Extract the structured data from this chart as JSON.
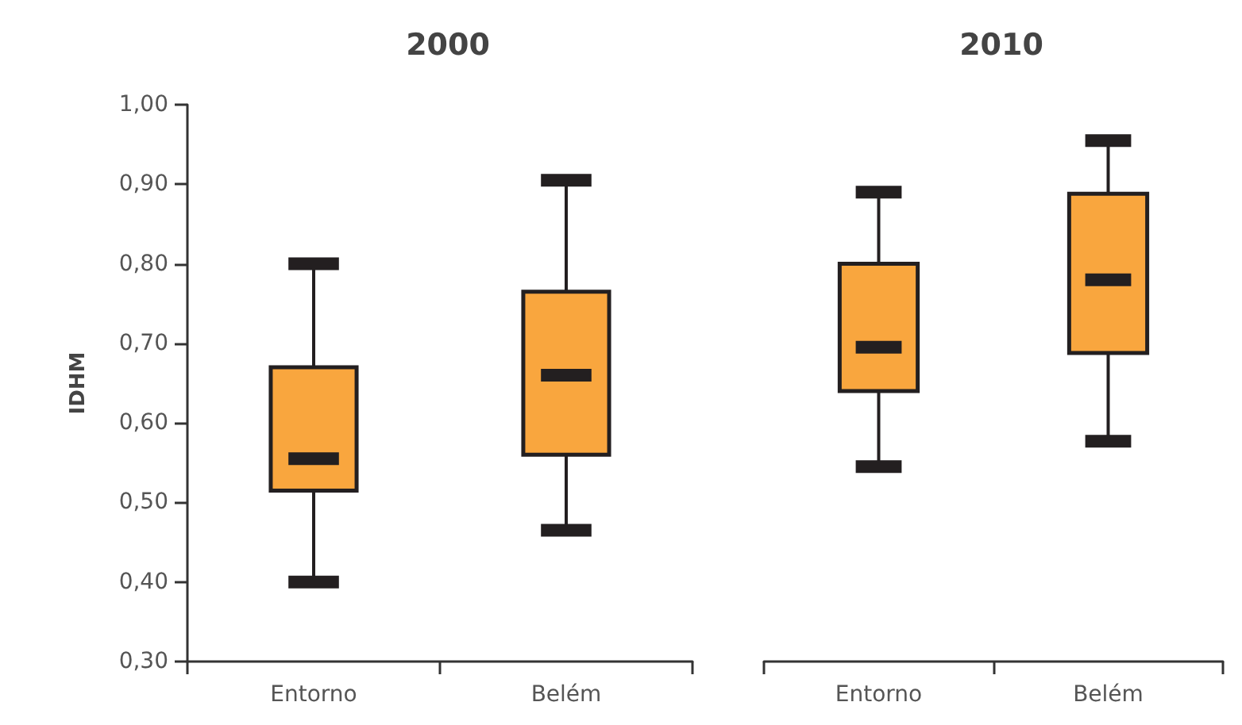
{
  "chart_data": [
    {
      "type": "box",
      "title": "2000",
      "ylabel": "IDHM",
      "categories": [
        "Entorno",
        "Belém"
      ],
      "color": "#f9a63e",
      "boxes": [
        {
          "low": 0.4,
          "q1": 0.515,
          "median": 0.555,
          "q3": 0.67,
          "high": 0.8
        },
        {
          "low": 0.465,
          "q1": 0.56,
          "median": 0.66,
          "q3": 0.765,
          "high": 0.905
        }
      ],
      "ylim": [
        0.3,
        1.0
      ],
      "yticks": [
        {
          "value": 0.3,
          "label": "0,30"
        },
        {
          "value": 0.4,
          "label": "0,40"
        },
        {
          "value": 0.5,
          "label": "0,50"
        },
        {
          "value": 0.6,
          "label": "0,60"
        },
        {
          "value": 0.7,
          "label": "0,70"
        },
        {
          "value": 0.8,
          "label": "0,80"
        },
        {
          "value": 0.9,
          "label": "0,90"
        },
        {
          "value": 1.0,
          "label": "1,00"
        }
      ]
    },
    {
      "type": "box",
      "title": "2010",
      "categories": [
        "Entorno",
        "Belém"
      ],
      "color": "#f9a63e",
      "boxes": [
        {
          "low": 0.545,
          "q1": 0.64,
          "median": 0.695,
          "q3": 0.8,
          "high": 0.89
        },
        {
          "low": 0.577,
          "q1": 0.688,
          "median": 0.78,
          "q3": 0.888,
          "high": 0.955
        }
      ],
      "ylim": [
        0.3,
        1.0
      ],
      "tick_labels": "x"
    }
  ]
}
